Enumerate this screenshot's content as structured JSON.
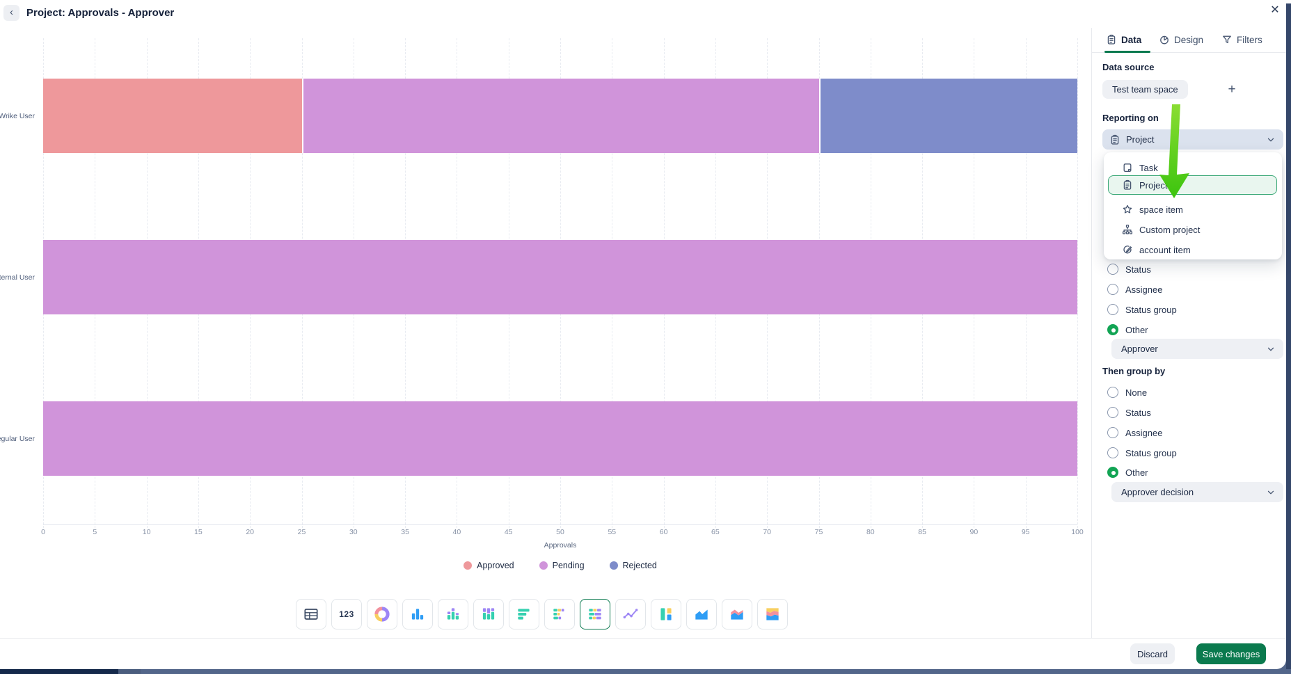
{
  "window": {
    "title": "Project: Approvals - Approver",
    "back_icon": "‹",
    "close_icon": "✕"
  },
  "chart_data": {
    "type": "bar",
    "subtype": "horizontal-stacked-100",
    "categories": [
      "Wrike User",
      "ternal User",
      "egular User"
    ],
    "series": [
      {
        "name": "Approved",
        "color": "#ee989b",
        "values": [
          25,
          0,
          0
        ]
      },
      {
        "name": "Pending",
        "color": "#d094da",
        "values": [
          50,
          100,
          100
        ]
      },
      {
        "name": "Rejected",
        "color": "#7e8cca",
        "values": [
          25,
          0,
          0
        ]
      }
    ],
    "title": "",
    "xlabel": "Approvals",
    "ylabel": "",
    "xlim": [
      0,
      100
    ],
    "x_ticks": [
      0,
      5,
      10,
      15,
      20,
      25,
      30,
      35,
      40,
      45,
      50,
      55,
      60,
      65,
      70,
      75,
      80,
      85,
      90,
      95,
      100
    ],
    "grid": "vertical-dashed",
    "legend_position": "bottom"
  },
  "toolbar": {
    "items": [
      {
        "icon": "table-chart-icon"
      },
      {
        "icon": "number-chart-icon",
        "label": "123"
      },
      {
        "icon": "donut-chart-icon"
      },
      {
        "icon": "column-chart-icon"
      },
      {
        "icon": "stacked-column-chart-icon"
      },
      {
        "icon": "stacked-column-100-chart-icon"
      },
      {
        "icon": "bar-chart-icon"
      },
      {
        "icon": "stacked-bar-chart-icon"
      },
      {
        "icon": "stacked-bar-100-chart-icon",
        "selected": true
      },
      {
        "icon": "line-chart-icon"
      },
      {
        "icon": "column-100-chart-icon"
      },
      {
        "icon": "area-chart-icon"
      },
      {
        "icon": "stacked-area-chart-icon"
      },
      {
        "icon": "stacked-area-100-chart-icon"
      }
    ]
  },
  "sidebar": {
    "tabs": [
      {
        "label": "Data",
        "icon": "clipboard-icon",
        "active": true
      },
      {
        "label": "Design",
        "icon": "pie-icon",
        "active": false
      },
      {
        "label": "Filters",
        "icon": "funnel-icon",
        "active": false
      }
    ],
    "data_source": {
      "label": "Data source",
      "chip": "Test team space",
      "add_icon": "+"
    },
    "reporting_on": {
      "label": "Reporting on",
      "value": "Project",
      "value_icon": "clipboard-icon"
    },
    "reporting_dropdown": {
      "options": [
        {
          "label": "Task",
          "icon": "task-icon",
          "selected": false
        },
        {
          "label": "Project",
          "icon": "clipboard-icon",
          "selected": true
        },
        {
          "label": "space item",
          "icon": "star-icon",
          "selected": false
        },
        {
          "label": "Custom project",
          "icon": "sitemap-icon",
          "selected": false
        },
        {
          "label": "account item",
          "icon": "pen-icon",
          "selected": false
        }
      ]
    },
    "group_by": {
      "visible_options": [
        {
          "label": "Status",
          "selected": false
        },
        {
          "label": "Assignee",
          "selected": false
        },
        {
          "label": "Status group",
          "selected": false
        },
        {
          "label": "Other",
          "selected": true
        }
      ],
      "other_value": "Approver"
    },
    "then_group_by": {
      "label": "Then group by",
      "options": [
        {
          "label": "None",
          "selected": false
        },
        {
          "label": "Status",
          "selected": false
        },
        {
          "label": "Assignee",
          "selected": false
        },
        {
          "label": "Status group",
          "selected": false
        },
        {
          "label": "Other",
          "selected": true
        }
      ],
      "other_value": "Approver decision"
    }
  },
  "footer": {
    "discard_label": "Discard",
    "save_label": "Save changes"
  },
  "colors": {
    "accent_green": "#0c7a50",
    "radio_selected": "#12a454",
    "highlight_border": "#3aa877",
    "highlight_bg": "#e9f6ef",
    "annotation_arrow_top": "#8add33",
    "annotation_arrow_bottom": "#3cc40e"
  }
}
